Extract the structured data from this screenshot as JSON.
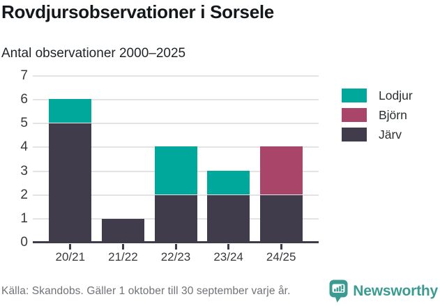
{
  "header": {
    "title": "Rovdjursobservationer i Sorsele",
    "subtitle": "Antal observationer 2000–2025"
  },
  "chart_data": {
    "type": "bar",
    "stacked": true,
    "title": "Rovdjursobservationer i Sorsele",
    "subtitle": "Antal observationer 2000–2025",
    "xlabel": "",
    "ylabel": "",
    "categories": [
      "20/21",
      "21/22",
      "22/23",
      "23/24",
      "24/25"
    ],
    "series": [
      {
        "name": "Lodjur",
        "color": "#00a79b",
        "values": [
          1,
          0,
          2,
          1,
          0
        ]
      },
      {
        "name": "Björn",
        "color": "#a94569",
        "values": [
          0,
          0,
          0,
          0,
          2
        ]
      },
      {
        "name": "Järv",
        "color": "#413c4b",
        "values": [
          5,
          1,
          2,
          2,
          2
        ]
      }
    ],
    "stack_order_bottom_to_top": [
      "Järv",
      "Björn",
      "Lodjur"
    ],
    "totals": [
      6,
      1,
      4,
      3,
      4
    ],
    "ylim": [
      0,
      7
    ],
    "ytick_step": 1,
    "grid": true,
    "legend_position": "right"
  },
  "footer": {
    "source": "Källa: Skandobs. Gäller 1 oktober till 30 september varje år.",
    "brand": "Newsworthy"
  },
  "colors": {
    "background": "#ffffff",
    "gridline": "#e3e3e3",
    "axis": "#3f3c49",
    "tick_label": "#38393b",
    "title_text": "#15181a",
    "source_text": "#6f7377",
    "brand_teal": "#3b9b93"
  }
}
